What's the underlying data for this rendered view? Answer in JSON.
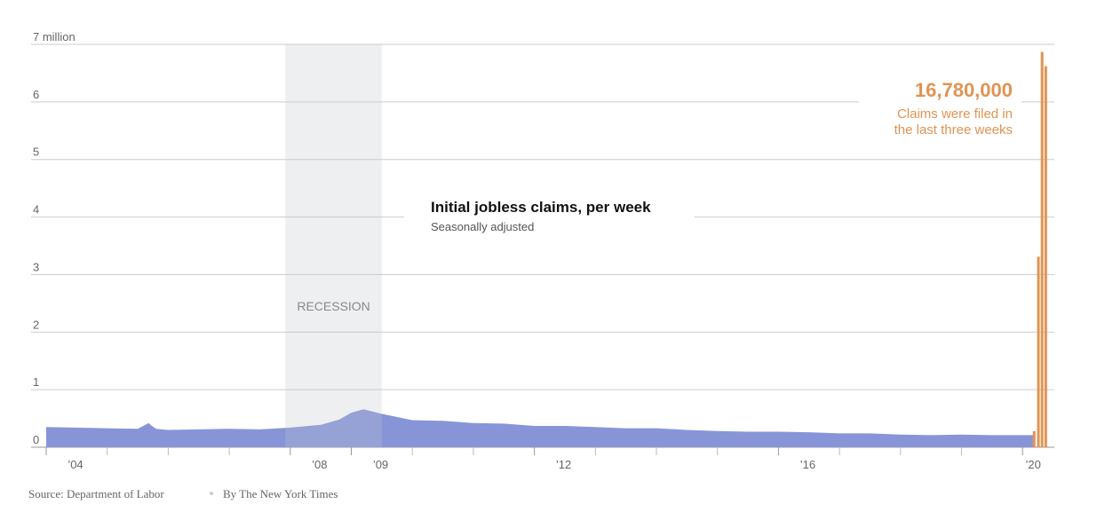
{
  "chart_data": {
    "type": "area",
    "title": "Initial jobless claims, per week",
    "subtitle": "Seasonally adjusted",
    "source": "Source: Department of Labor",
    "byline": "By The New York Times",
    "annotation": {
      "value": 16780000,
      "label": "16,780,000",
      "lines": [
        "Claims were filed in",
        "the last three weeks"
      ],
      "color": "#e09453"
    },
    "recession": {
      "label": "RECESSION",
      "start": 2007.92,
      "end": 2009.5
    },
    "xlim": [
      2004,
      2020.42
    ],
    "ylim": [
      0,
      7
    ],
    "yticks": [
      0,
      1,
      2,
      3,
      4,
      5,
      6,
      {
        "value": 7,
        "label": "7 million"
      }
    ],
    "xticks": [
      {
        "value": 2004,
        "label": "’04"
      },
      {
        "value": 2008,
        "label": "’08"
      },
      {
        "value": 2009,
        "label": "’09"
      },
      {
        "value": 2012,
        "label": "’12"
      },
      {
        "value": 2016,
        "label": "’16"
      },
      {
        "value": 2020,
        "label": "’20"
      }
    ],
    "xminor": [
      2005,
      2006,
      2007,
      2010,
      2011,
      2013,
      2014,
      2015,
      2017,
      2018,
      2019
    ],
    "grid": true,
    "series": [
      {
        "name": "Initial claims",
        "color": "#8795d8",
        "x": [
          2004.0,
          2004.5,
          2005.0,
          2005.5,
          2005.68,
          2005.72,
          2005.8,
          2006.0,
          2006.5,
          2007.0,
          2007.5,
          2008.0,
          2008.5,
          2008.8,
          2009.0,
          2009.2,
          2009.5,
          2010.0,
          2010.5,
          2011.0,
          2011.5,
          2012.0,
          2012.5,
          2013.0,
          2013.5,
          2014.0,
          2014.5,
          2015.0,
          2015.5,
          2016.0,
          2016.5,
          2017.0,
          2017.5,
          2018.0,
          2018.5,
          2019.0,
          2019.5,
          2020.0,
          2020.17
        ],
        "values": [
          0.35,
          0.34,
          0.33,
          0.32,
          0.42,
          0.38,
          0.32,
          0.3,
          0.31,
          0.32,
          0.31,
          0.34,
          0.39,
          0.48,
          0.6,
          0.66,
          0.58,
          0.47,
          0.46,
          0.42,
          0.41,
          0.37,
          0.37,
          0.35,
          0.33,
          0.33,
          0.3,
          0.28,
          0.27,
          0.27,
          0.26,
          0.24,
          0.24,
          0.22,
          0.21,
          0.22,
          0.21,
          0.21,
          0.21
        ]
      },
      {
        "name": "Recent weeks",
        "color": "#e09453",
        "x": [
          2020.19,
          2020.26,
          2020.32,
          2020.38
        ],
        "values": [
          0.28,
          3.31,
          6.87,
          6.62
        ]
      }
    ]
  }
}
